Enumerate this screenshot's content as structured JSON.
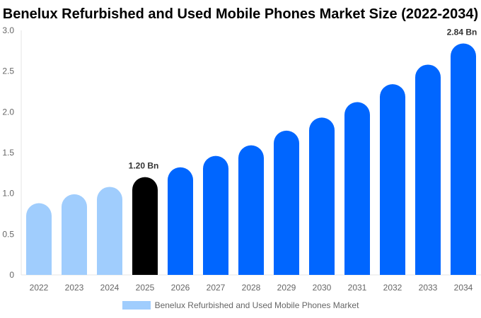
{
  "chart_data": {
    "type": "bar",
    "title": "Benelux Refurbished and Used Mobile Phones Market Size (2022-2034)",
    "categories": [
      "2022",
      "2023",
      "2024",
      "2025",
      "2026",
      "2027",
      "2028",
      "2029",
      "2030",
      "2031",
      "2032",
      "2033",
      "2034"
    ],
    "series": [
      {
        "name": "Benelux Refurbished and Used Mobile Phones Market",
        "values": [
          0.88,
          0.99,
          1.08,
          1.2,
          1.32,
          1.46,
          1.59,
          1.77,
          1.93,
          2.12,
          2.34,
          2.58,
          2.84
        ]
      }
    ],
    "ylim": [
      0,
      3.0
    ],
    "yticks": [
      "0",
      "0.5",
      "1.0",
      "1.5",
      "2.0",
      "2.5",
      "3.0"
    ],
    "data_labels": {
      "2025": "1.20 Bn",
      "2034": "2.84 Bn"
    },
    "colors": {
      "historic": "#a0cdfd",
      "current": "#000000",
      "forecast": "#0066ff"
    },
    "bar_color_groups": [
      "historic",
      "historic",
      "historic",
      "current",
      "forecast",
      "forecast",
      "forecast",
      "forecast",
      "forecast",
      "forecast",
      "forecast",
      "forecast",
      "forecast"
    ],
    "legend_placement": "bottom",
    "grid": false
  }
}
